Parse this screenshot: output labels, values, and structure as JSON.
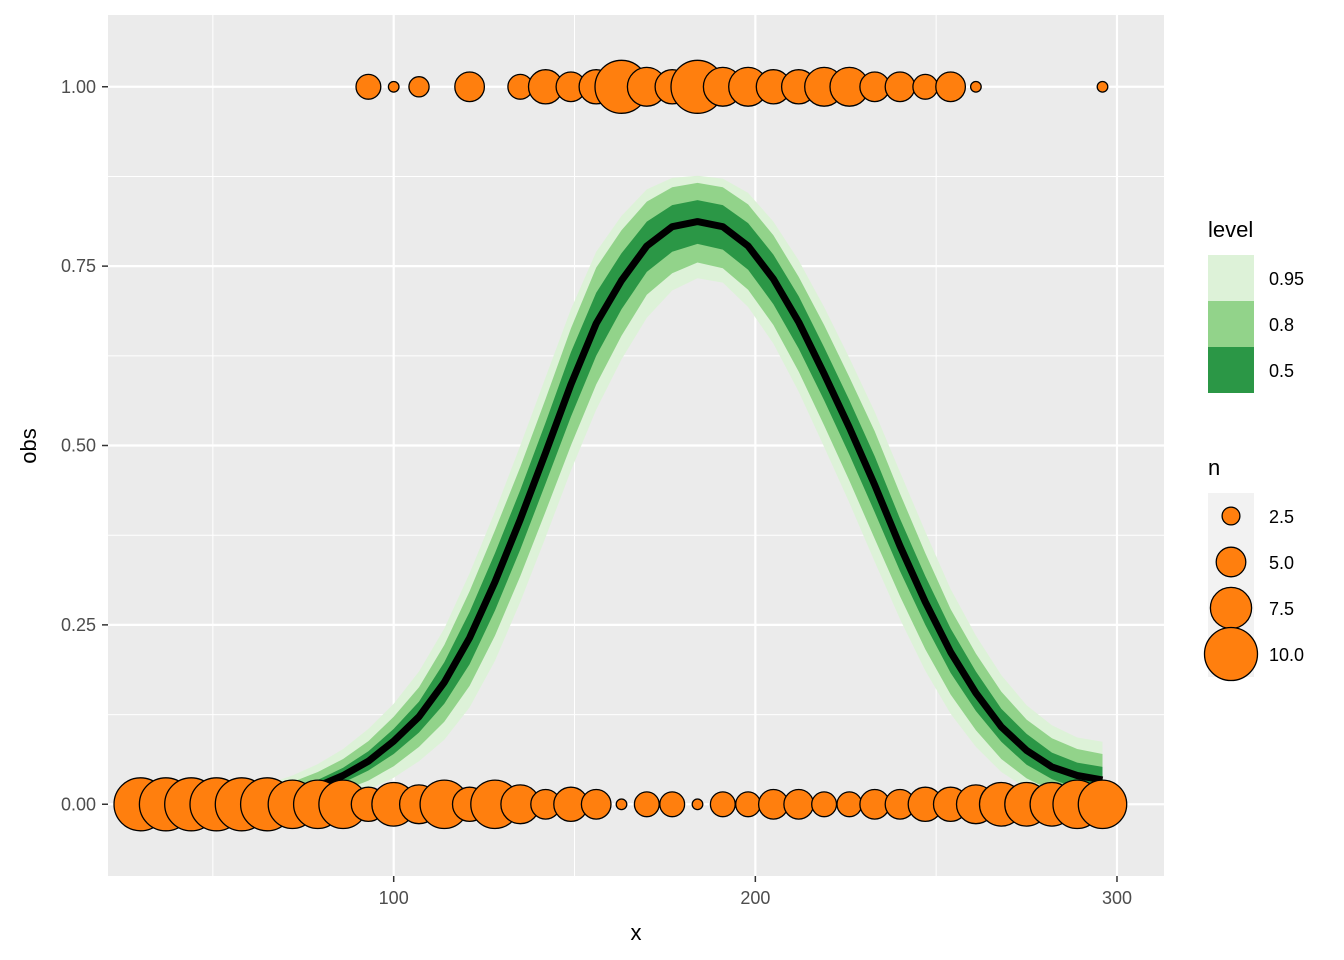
{
  "chart_data": {
    "type": "scatter",
    "xlabel": "x",
    "ylabel": "obs",
    "xlim": [
      21,
      313
    ],
    "ylim": [
      -0.1,
      1.1
    ],
    "x_ticks": [
      100,
      200,
      300
    ],
    "x_tick_labels": [
      "100",
      "200",
      "300"
    ],
    "y_ticks": [
      0,
      0.25,
      0.5,
      0.75,
      1.0
    ],
    "y_tick_labels": [
      "0.00",
      "0.25",
      "0.50",
      "0.75",
      "1.00"
    ],
    "grid": true,
    "legend_position": "right",
    "colors": {
      "panel": "#EBEBEB",
      "point_fill": "#FF7F0E",
      "point_stroke": "#000000",
      "line": "#000000",
      "band_95": "#DDF2D8",
      "band_80": "#92D38A",
      "band_50": "#2B9746"
    },
    "fitted_curve": {
      "x": [
        58,
        65,
        72,
        79,
        86,
        93,
        100,
        107,
        114,
        121,
        128,
        135,
        142,
        149,
        156,
        163,
        170,
        177,
        184,
        191,
        198,
        205,
        212,
        219,
        226,
        233,
        240,
        247,
        254,
        261,
        268,
        275,
        282,
        289,
        296
      ],
      "y": [
        0.003,
        0.008,
        0.016,
        0.025,
        0.04,
        0.06,
        0.088,
        0.122,
        0.17,
        0.232,
        0.31,
        0.397,
        0.49,
        0.585,
        0.67,
        0.73,
        0.778,
        0.805,
        0.812,
        0.805,
        0.778,
        0.732,
        0.672,
        0.6,
        0.525,
        0.445,
        0.36,
        0.282,
        0.212,
        0.155,
        0.108,
        0.075,
        0.052,
        0.04,
        0.034
      ],
      "lo50": [
        0.0,
        0.004,
        0.01,
        0.018,
        0.03,
        0.047,
        0.07,
        0.1,
        0.14,
        0.195,
        0.27,
        0.355,
        0.447,
        0.54,
        0.625,
        0.69,
        0.742,
        0.77,
        0.781,
        0.773,
        0.745,
        0.697,
        0.635,
        0.563,
        0.487,
        0.407,
        0.325,
        0.25,
        0.183,
        0.13,
        0.087,
        0.055,
        0.035,
        0.022,
        0.016
      ],
      "hi50": [
        0.007,
        0.013,
        0.023,
        0.034,
        0.051,
        0.074,
        0.105,
        0.143,
        0.198,
        0.268,
        0.35,
        0.438,
        0.532,
        0.63,
        0.713,
        0.768,
        0.812,
        0.835,
        0.842,
        0.835,
        0.81,
        0.766,
        0.708,
        0.637,
        0.563,
        0.485,
        0.398,
        0.318,
        0.245,
        0.185,
        0.133,
        0.098,
        0.072,
        0.058,
        0.052
      ],
      "lo80": [
        0.0,
        0.0,
        0.004,
        0.01,
        0.019,
        0.033,
        0.053,
        0.08,
        0.115,
        0.165,
        0.235,
        0.318,
        0.408,
        0.5,
        0.585,
        0.653,
        0.71,
        0.74,
        0.755,
        0.747,
        0.717,
        0.668,
        0.603,
        0.528,
        0.451,
        0.37,
        0.29,
        0.216,
        0.153,
        0.103,
        0.063,
        0.036,
        0.019,
        0.009,
        0.005
      ],
      "hi80": [
        0.012,
        0.02,
        0.031,
        0.045,
        0.063,
        0.088,
        0.122,
        0.163,
        0.222,
        0.297,
        0.382,
        0.47,
        0.565,
        0.663,
        0.748,
        0.8,
        0.84,
        0.86,
        0.866,
        0.86,
        0.836,
        0.793,
        0.735,
        0.668,
        0.595,
        0.52,
        0.433,
        0.35,
        0.272,
        0.21,
        0.157,
        0.118,
        0.092,
        0.077,
        0.07
      ],
      "lo95": [
        0.0,
        0.0,
        0.0,
        0.003,
        0.01,
        0.02,
        0.037,
        0.06,
        0.09,
        0.135,
        0.2,
        0.282,
        0.372,
        0.465,
        0.55,
        0.62,
        0.678,
        0.716,
        0.733,
        0.727,
        0.693,
        0.642,
        0.575,
        0.498,
        0.42,
        0.338,
        0.258,
        0.186,
        0.126,
        0.08,
        0.045,
        0.022,
        0.009,
        0.002,
        0.0
      ],
      "hi95": [
        0.018,
        0.028,
        0.04,
        0.056,
        0.077,
        0.105,
        0.14,
        0.185,
        0.245,
        0.322,
        0.408,
        0.5,
        0.595,
        0.69,
        0.77,
        0.82,
        0.857,
        0.873,
        0.876,
        0.872,
        0.852,
        0.812,
        0.758,
        0.693,
        0.622,
        0.547,
        0.463,
        0.38,
        0.3,
        0.235,
        0.18,
        0.138,
        0.11,
        0.093,
        0.087
      ]
    },
    "points_obs1": [
      {
        "x": 93,
        "n": 4
      },
      {
        "x": 100,
        "n": 1
      },
      {
        "x": 107,
        "n": 3
      },
      {
        "x": 121,
        "n": 5
      },
      {
        "x": 135,
        "n": 4
      },
      {
        "x": 142,
        "n": 6
      },
      {
        "x": 149,
        "n": 5
      },
      {
        "x": 156,
        "n": 6
      },
      {
        "x": 163,
        "n": 10
      },
      {
        "x": 170,
        "n": 7
      },
      {
        "x": 177,
        "n": 6
      },
      {
        "x": 184,
        "n": 10
      },
      {
        "x": 191,
        "n": 7
      },
      {
        "x": 198,
        "n": 7
      },
      {
        "x": 205,
        "n": 6
      },
      {
        "x": 212,
        "n": 6
      },
      {
        "x": 219,
        "n": 7
      },
      {
        "x": 226,
        "n": 7
      },
      {
        "x": 233,
        "n": 5
      },
      {
        "x": 240,
        "n": 5
      },
      {
        "x": 247,
        "n": 4
      },
      {
        "x": 254,
        "n": 5
      },
      {
        "x": 261,
        "n": 1
      },
      {
        "x": 296,
        "n": 1
      }
    ],
    "points_obs0": [
      {
        "x": 30,
        "n": 10
      },
      {
        "x": 37,
        "n": 10
      },
      {
        "x": 44,
        "n": 10
      },
      {
        "x": 51,
        "n": 10
      },
      {
        "x": 58,
        "n": 10
      },
      {
        "x": 65,
        "n": 10
      },
      {
        "x": 72,
        "n": 9
      },
      {
        "x": 79,
        "n": 9
      },
      {
        "x": 86,
        "n": 9
      },
      {
        "x": 93,
        "n": 6
      },
      {
        "x": 100,
        "n": 8
      },
      {
        "x": 107,
        "n": 7
      },
      {
        "x": 114,
        "n": 9
      },
      {
        "x": 121,
        "n": 6
      },
      {
        "x": 128,
        "n": 9
      },
      {
        "x": 135,
        "n": 7
      },
      {
        "x": 142,
        "n": 5
      },
      {
        "x": 149,
        "n": 6
      },
      {
        "x": 156,
        "n": 5
      },
      {
        "x": 163,
        "n": 1
      },
      {
        "x": 170,
        "n": 4
      },
      {
        "x": 177,
        "n": 4
      },
      {
        "x": 184,
        "n": 1
      },
      {
        "x": 191,
        "n": 4
      },
      {
        "x": 198,
        "n": 4
      },
      {
        "x": 205,
        "n": 5
      },
      {
        "x": 212,
        "n": 5
      },
      {
        "x": 219,
        "n": 4
      },
      {
        "x": 226,
        "n": 4
      },
      {
        "x": 233,
        "n": 5
      },
      {
        "x": 240,
        "n": 5
      },
      {
        "x": 247,
        "n": 6
      },
      {
        "x": 254,
        "n": 6
      },
      {
        "x": 261,
        "n": 7
      },
      {
        "x": 268,
        "n": 8
      },
      {
        "x": 275,
        "n": 8
      },
      {
        "x": 282,
        "n": 8
      },
      {
        "x": 289,
        "n": 9
      },
      {
        "x": 296,
        "n": 9
      }
    ],
    "legend_level": {
      "title": "level",
      "entries": [
        {
          "label": "0.95",
          "color": "#DDF2D8"
        },
        {
          "label": "0.8",
          "color": "#92D38A"
        },
        {
          "label": "0.5",
          "color": "#2B9746"
        }
      ]
    },
    "legend_n": {
      "title": "n",
      "entries": [
        {
          "label": "2.5",
          "n": 2.5
        },
        {
          "label": "5.0",
          "n": 5.0
        },
        {
          "label": "7.5",
          "n": 7.5
        },
        {
          "label": "10.0",
          "n": 10.0
        }
      ]
    }
  }
}
